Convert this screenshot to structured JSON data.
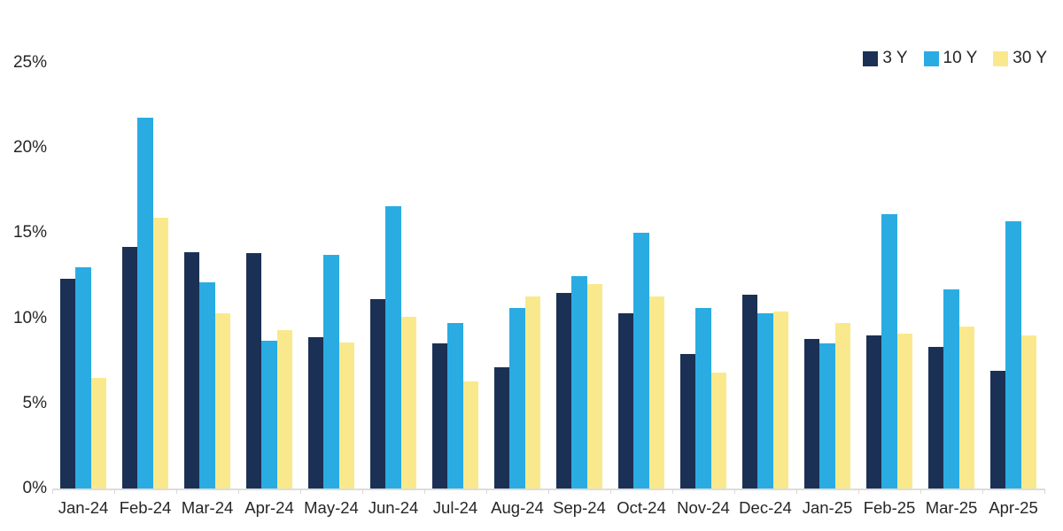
{
  "chart_data": {
    "type": "bar",
    "title": "",
    "xlabel": "",
    "ylabel": "",
    "ylim": [
      0,
      25
    ],
    "yticks": [
      "0%",
      "5%",
      "10%",
      "15%",
      "20%",
      "25%"
    ],
    "ytick_values": [
      0,
      5,
      10,
      15,
      20,
      25
    ],
    "grid": false,
    "legend_position": "top-right",
    "categories": [
      "Jan-24",
      "Feb-24",
      "Mar-24",
      "Apr-24",
      "May-24",
      "Jun-24",
      "Jul-24",
      "Aug-24",
      "Sep-24",
      "Oct-24",
      "Nov-24",
      "Dec-24",
      "Jan-25",
      "Feb-25",
      "Mar-25",
      "Apr-25"
    ],
    "series": [
      {
        "name": "3 Y",
        "color": "#1b3055",
        "values": [
          12.3,
          14.2,
          13.9,
          13.8,
          8.9,
          11.1,
          8.5,
          7.1,
          11.5,
          10.3,
          7.9,
          11.4,
          8.8,
          9.0,
          8.3,
          6.9
        ]
      },
      {
        "name": "10 Y",
        "color": "#2aace2",
        "values": [
          13.0,
          21.8,
          12.1,
          8.7,
          13.7,
          16.6,
          9.7,
          10.6,
          12.5,
          15.0,
          10.6,
          10.3,
          8.5,
          16.1,
          11.7,
          15.7
        ]
      },
      {
        "name": "30 Y",
        "color": "#fae98c",
        "values": [
          6.5,
          15.9,
          10.3,
          9.3,
          8.6,
          10.1,
          6.3,
          11.3,
          12.0,
          11.3,
          6.8,
          10.4,
          9.7,
          9.1,
          9.5,
          9.0
        ]
      }
    ]
  },
  "colors": {
    "background": "#ffffff",
    "axis_line": "#dcdcdc",
    "tick": "#d9d9d9",
    "text": "#262626"
  }
}
